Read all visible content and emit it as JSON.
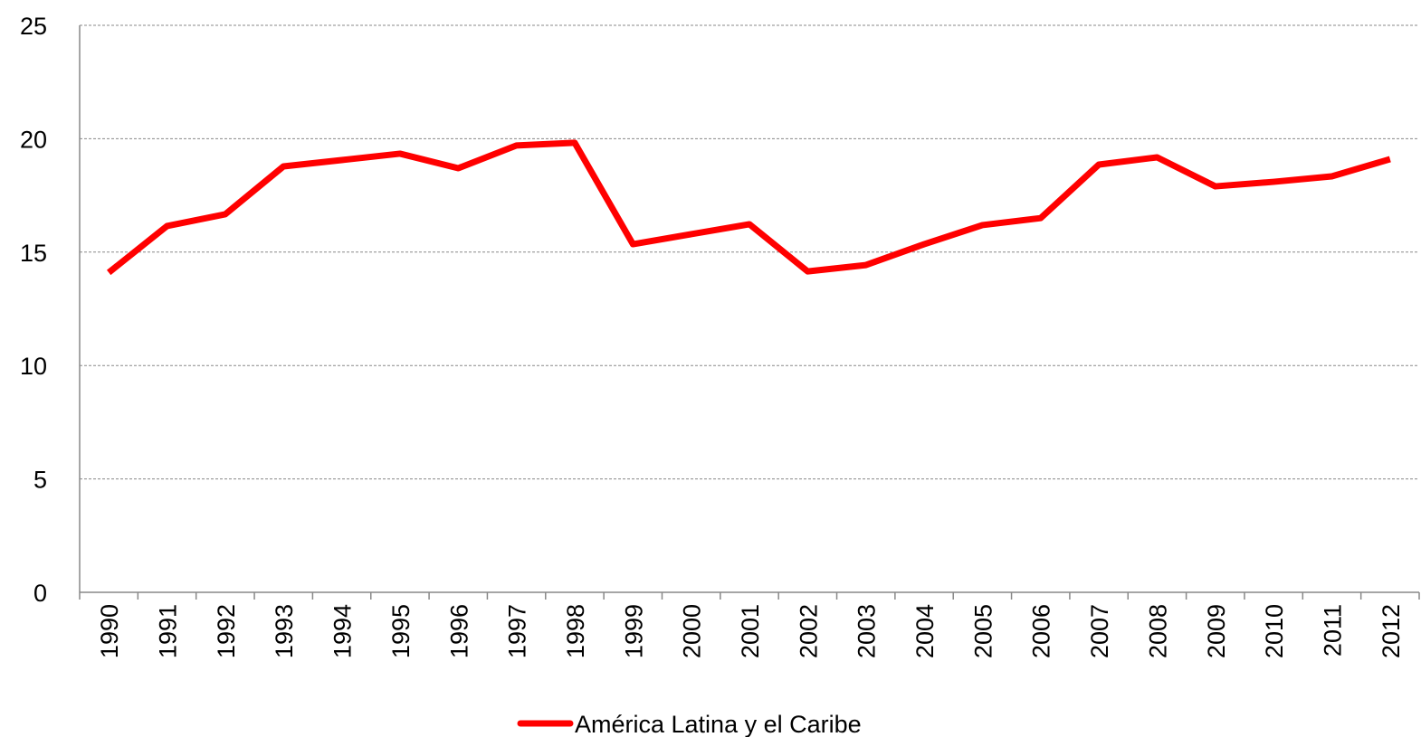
{
  "chart_data": {
    "type": "line",
    "categories": [
      "1990",
      "1991",
      "1992",
      "1993",
      "1994",
      "1995",
      "1996",
      "1997",
      "1998",
      "1999",
      "2000",
      "2001",
      "2002",
      "2003",
      "2004",
      "2005",
      "2006",
      "2007",
      "2008",
      "2009",
      "2010",
      "2011",
      "2012"
    ],
    "series": [
      {
        "name": "América Latina y el Caribe",
        "color": "#ff0000",
        "values": [
          14.1,
          16.15,
          16.67,
          18.78,
          19.06,
          19.34,
          18.7,
          19.7,
          19.82,
          15.35,
          15.79,
          16.23,
          14.15,
          14.43,
          15.35,
          16.19,
          16.5,
          18.86,
          19.18,
          17.9,
          18.1,
          18.34,
          19.1
        ]
      }
    ],
    "ylim": [
      0,
      25
    ],
    "yticks": [
      0,
      5,
      10,
      15,
      20,
      25
    ],
    "grid": true,
    "legend": "bottom"
  }
}
